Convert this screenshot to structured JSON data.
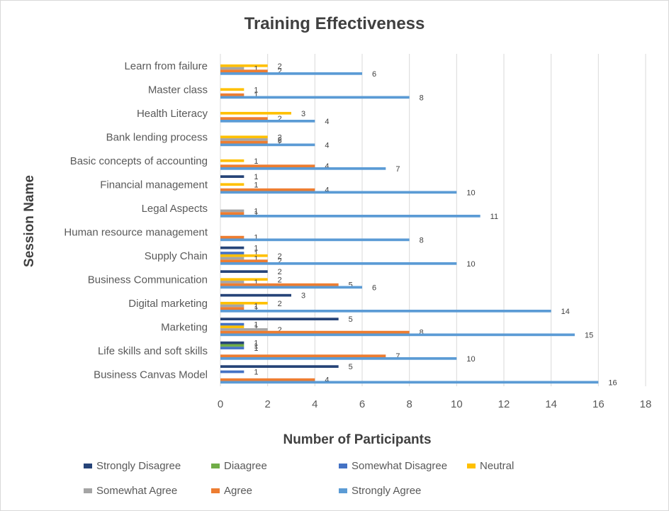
{
  "chart_data": {
    "type": "bar",
    "orientation": "horizontal",
    "title": "Training Effectiveness",
    "xlabel": "Number of Participants",
    "ylabel": "Session Name",
    "xlim": [
      0,
      18
    ],
    "xticks": [
      0,
      2,
      4,
      6,
      8,
      10,
      12,
      14,
      16,
      18
    ],
    "grid": "vertical",
    "legend_position": "bottom",
    "categories": [
      "Business Canvas Model",
      "Life skills and soft skills",
      "Marketing",
      "Digital marketing",
      "Business Communication",
      "Supply Chain",
      "Human resource management",
      "Legal Aspects",
      "Financial management",
      "Basic concepts of accounting",
      "Bank lending process",
      "Health Literacy",
      "Master class",
      "Learn from failure"
    ],
    "series": [
      {
        "name": "Strongly Disagree",
        "color": "#264478",
        "values": [
          5,
          1,
          5,
          3,
          2,
          1,
          null,
          null,
          1,
          null,
          null,
          null,
          null,
          null
        ]
      },
      {
        "name": "Diaagree",
        "color": "#70ad47",
        "values": [
          null,
          1,
          null,
          null,
          null,
          null,
          null,
          null,
          null,
          null,
          null,
          null,
          null,
          null
        ]
      },
      {
        "name": "Somewhat Disagree",
        "color": "#4472c4",
        "values": [
          1,
          1,
          1,
          null,
          null,
          1,
          null,
          null,
          null,
          null,
          null,
          null,
          null,
          null
        ]
      },
      {
        "name": "Neutral",
        "color": "#ffc000",
        "values": [
          null,
          null,
          1,
          2,
          2,
          2,
          null,
          null,
          1,
          1,
          2,
          3,
          1,
          2
        ]
      },
      {
        "name": "Somewhat Agree",
        "color": "#a5a5a5",
        "values": [
          null,
          null,
          2,
          1,
          1,
          1,
          null,
          1,
          null,
          null,
          2,
          null,
          null,
          1
        ]
      },
      {
        "name": "Agree",
        "color": "#ed7d31",
        "values": [
          4,
          7,
          8,
          1,
          5,
          2,
          1,
          1,
          4,
          4,
          2,
          2,
          1,
          2
        ]
      },
      {
        "name": "Strongly Agree",
        "color": "#5b9bd5",
        "values": [
          16,
          10,
          15,
          14,
          6,
          10,
          8,
          11,
          10,
          7,
          4,
          4,
          8,
          6
        ]
      }
    ]
  }
}
